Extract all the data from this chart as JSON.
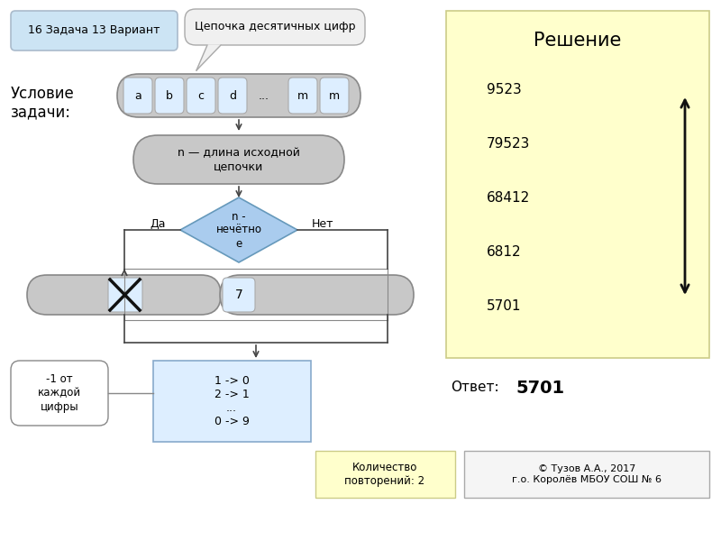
{
  "title_box": "16 Задача 13 Вариант",
  "callout_text": "Цепочка десятичных цифр",
  "condition_label": "Условие\nзадачи:",
  "chain_items": [
    "a",
    "b",
    "c",
    "d",
    "...",
    "m",
    "m"
  ],
  "process1_text": "n — длина исходной\nцепочки",
  "diamond_text": "n -\nнечётно\nе",
  "yes_label": "Да",
  "no_label": "Нет",
  "num7": "7",
  "annotation_text": "-1 от\nкаждой\nцифры",
  "process2_text": "1 -> 0\n2 -> 1\n...\n0 -> 9",
  "repeat_box_text": "Количество\nповторений: 2",
  "solution_title": "Решение",
  "solution_values": [
    "9523",
    "79523",
    "68412",
    "6812",
    "5701"
  ],
  "answer_text": "Ответ:",
  "answer_value": "5701",
  "copyright_text": "© Тузов А.А., 2017\nг.о. Королёв МБОУ СОШ № 6",
  "color_blue_light": "#ddeeff",
  "color_gray": "#c8c8c8",
  "color_diamond": "#aaccee",
  "color_yellow_light": "#ffffcc",
  "color_title_bg": "#cce4f4"
}
